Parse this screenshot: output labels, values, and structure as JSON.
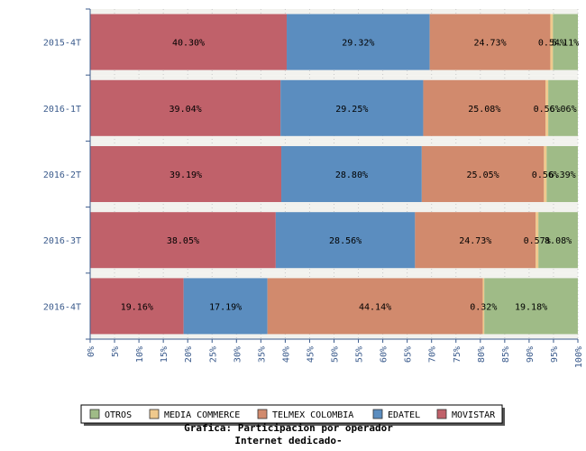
{
  "chart_data": {
    "type": "bar",
    "orientation": "horizontal",
    "stacked": true,
    "categories": [
      "2015-4T",
      "2016-1T",
      "2016-2T",
      "2016-3T",
      "2016-4T"
    ],
    "series": [
      {
        "name": "MOVISTAR",
        "color": "#c0616a",
        "values": [
          40.3,
          39.04,
          39.19,
          38.05,
          19.16
        ]
      },
      {
        "name": "EDATEL",
        "color": "#5b8dbf",
        "values": [
          29.32,
          29.25,
          28.8,
          28.56,
          17.19
        ]
      },
      {
        "name": "TELMEX COLOMBIA",
        "color": "#d18a6d",
        "values": [
          24.73,
          25.08,
          25.05,
          24.73,
          44.14
        ]
      },
      {
        "name": "MEDIA COMMERCE",
        "color": "#efc98d",
        "values": [
          0.54,
          0.56,
          0.56,
          0.57,
          0.32
        ]
      },
      {
        "name": "OTROS",
        "color": "#9fbb87",
        "values": [
          5.11,
          6.06,
          6.39,
          8.08,
          19.18
        ]
      }
    ],
    "value_labels": [
      [
        "40.30%",
        "39.04%",
        "39.19%",
        "38.05%",
        "19.16%"
      ],
      [
        "29.32%",
        "29.25%",
        "28.80%",
        "28.56%",
        "17.19%"
      ],
      [
        "24.73%",
        "25.08%",
        "25.05%",
        "24.73%",
        "44.14%"
      ],
      [
        "0.54%",
        "0.56%",
        "0.56%",
        "0.57%",
        "0.32%"
      ],
      [
        "5.11%",
        "6.06%",
        "6.39%",
        "8.08%",
        "19.18%"
      ]
    ],
    "xlim": [
      0,
      100
    ],
    "xticks": [
      "0%",
      "5%",
      "10%",
      "15%",
      "20%",
      "25%",
      "30%",
      "35%",
      "40%",
      "45%",
      "50%",
      "55%",
      "60%",
      "65%",
      "70%",
      "75%",
      "80%",
      "85%",
      "90%",
      "95%",
      "100%"
    ],
    "legend": {
      "position": "bottom",
      "order": [
        "OTROS",
        "MEDIA COMMERCE",
        "TELMEX COLOMBIA",
        "EDATEL",
        "MOVISTAR"
      ]
    },
    "grid": true,
    "title": "Grafica: Participacion por operador",
    "subtitle": "Internet dedicado-"
  }
}
